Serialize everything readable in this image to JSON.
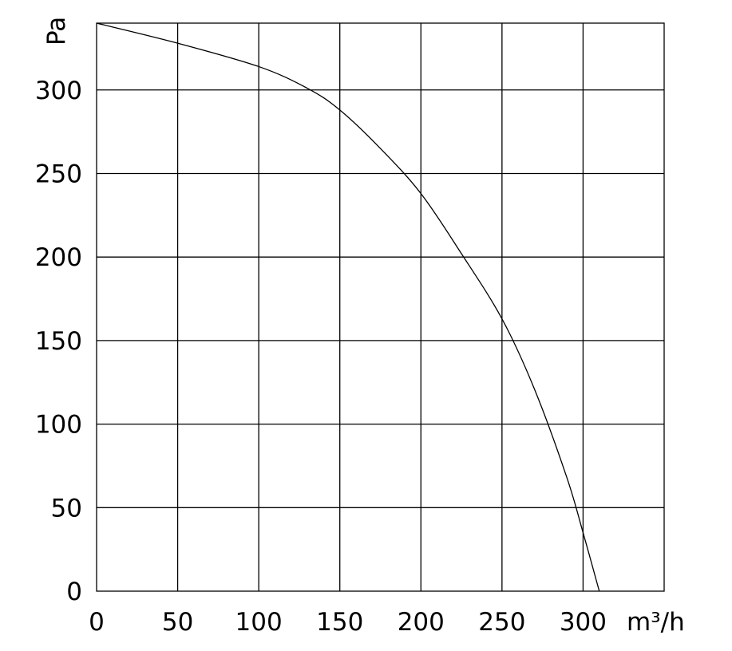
{
  "chart_data": {
    "type": "line",
    "title": "",
    "xlabel": "m³/h",
    "ylabel": "Pa",
    "xlim": [
      0,
      350
    ],
    "ylim": [
      0,
      340
    ],
    "x_ticks": [
      "0",
      "50",
      "100",
      "150",
      "200",
      "250",
      "300"
    ],
    "y_ticks": [
      "0",
      "50",
      "100",
      "150",
      "200",
      "250",
      "300"
    ],
    "grid": true,
    "series": [
      {
        "x": [
          0,
          50,
          100,
          130,
          150,
          175,
          200,
          225,
          250,
          270,
          290,
          300,
          310
        ],
        "y": [
          340,
          328,
          314,
          301,
          288,
          265,
          238,
          202,
          163,
          121,
          68,
          35,
          0
        ]
      }
    ]
  }
}
